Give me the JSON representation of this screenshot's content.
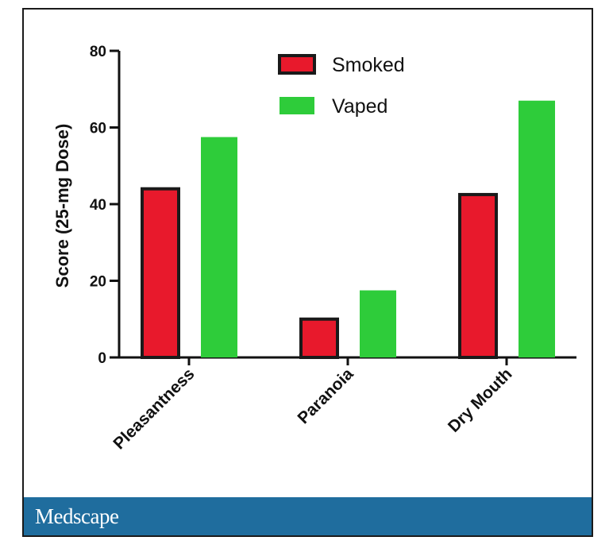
{
  "chart_data": {
    "type": "bar",
    "title": "",
    "xlabel": "",
    "ylabel": "Score (25-mg Dose)",
    "categories": [
      "Pleasantness",
      "Paranoia",
      "Dry Mouth"
    ],
    "series": [
      {
        "name": "Smoked",
        "values": [
          44,
          10,
          42.5
        ],
        "color": "#e8192c",
        "edge_color": "#1a1a1a"
      },
      {
        "name": "Vaped",
        "values": [
          57.5,
          17.5,
          67
        ],
        "color": "#2ecc3a",
        "edge_color": "#2ecc3a"
      }
    ],
    "ylim": [
      0,
      80
    ],
    "yticks": [
      0,
      20,
      40,
      60,
      80
    ],
    "grid": false,
    "legend_position": "top-center"
  },
  "brand": {
    "name": "Medscape",
    "bar_color": "#1f6d9e"
  }
}
